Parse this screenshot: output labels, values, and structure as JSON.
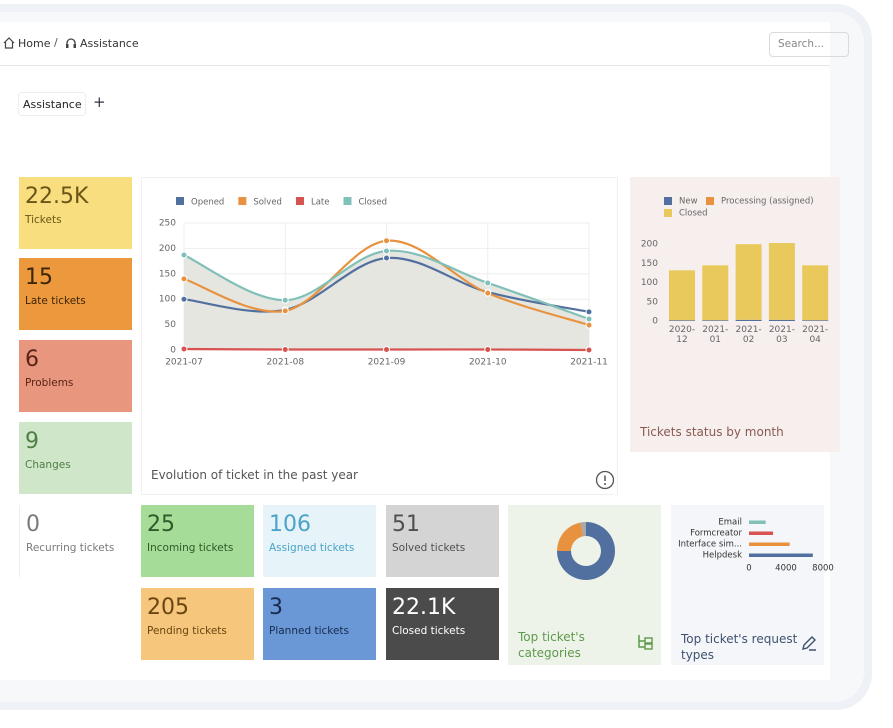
{
  "breadcrumb": [
    "Home",
    "Assistance"
  ],
  "search_placeholder": "Search...",
  "tab": "Assistance",
  "tiles": [
    {
      "value": "22.5K",
      "label": "Tickets",
      "color": "#f8de7e",
      "text_color": "#6a5518"
    },
    {
      "value": "15",
      "label": "Late tickets",
      "color": "#ec983c",
      "text_color": "#3b2608"
    },
    {
      "value": "6",
      "label": "Problems",
      "color": "#e8977e",
      "text_color": "#5a2418"
    },
    {
      "value": "9",
      "label": "Changes",
      "color": "#cfe6c8",
      "text_color": "#4f7f45"
    },
    {
      "value": "0",
      "label": "Recurring tickets",
      "color": "#ffffff",
      "text_color": "#7a7a7a"
    },
    {
      "value": "25",
      "label": "Incoming tickets",
      "color": "#a5dc98",
      "text_color": "#2d5a28"
    },
    {
      "value": "106",
      "label": "Assigned tickets",
      "color": "#e6f3f8",
      "text_color": "#4aa3c9"
    },
    {
      "value": "51",
      "label": "Solved tickets",
      "color": "#d4d4d4",
      "text_color": "#505050"
    },
    {
      "value": "205",
      "label": "Pending tickets",
      "color": "#f6c67c",
      "text_color": "#6a4510"
    },
    {
      "value": "3",
      "label": "Planned tickets",
      "color": "#6a98d6",
      "text_color": "#182a4e"
    },
    {
      "value": "22.1K",
      "label": "Closed tickets",
      "color": "#4b4b4b",
      "text_color": "#ffffff"
    }
  ],
  "chart_data": [
    {
      "type": "line",
      "title": "Evolution of ticket in the past year",
      "categories": [
        "2021-07",
        "2021-08",
        "2021-09",
        "2021-10",
        "2021-11"
      ],
      "series": [
        {
          "name": "Opened",
          "color": "#52709f",
          "values": [
            100,
            79,
            181,
            114,
            75
          ]
        },
        {
          "name": "Solved",
          "color": "#e8923f",
          "values": [
            140,
            77,
            215,
            112,
            49
          ]
        },
        {
          "name": "Late",
          "color": "#d65350",
          "values": [
            2,
            1,
            1,
            1,
            0
          ]
        },
        {
          "name": "Closed",
          "color": "#80c0b8",
          "values": [
            187,
            98,
            195,
            132,
            61
          ]
        }
      ],
      "ylim": [
        0,
        250
      ],
      "yticks": [
        0,
        50,
        100,
        150,
        200,
        250
      ],
      "grid": true
    },
    {
      "type": "bar",
      "title": "Tickets status by month",
      "stacked": true,
      "categories": [
        "2020-12",
        "2021-01",
        "2021-02",
        "2021-03",
        "2021-04"
      ],
      "series": [
        {
          "name": "New",
          "color": "#52709f",
          "values": [
            2,
            2,
            3,
            3,
            2
          ]
        },
        {
          "name": "Processing (assigned)",
          "color": "#e8923f",
          "values": [
            0,
            0,
            0,
            0,
            0
          ]
        },
        {
          "name": "Closed",
          "color": "#e9c95c",
          "values": [
            130,
            143,
            197,
            200,
            143
          ]
        }
      ],
      "ylim": [
        0,
        250
      ],
      "yticks": [
        0,
        50,
        100,
        150,
        200
      ]
    },
    {
      "type": "pie",
      "title": "Top ticket's categories",
      "donut": true,
      "values": [
        75,
        22,
        3
      ],
      "colors": [
        "#52709f",
        "#e8923f",
        "#a9a9a9"
      ]
    },
    {
      "type": "hbar",
      "title": "Top ticket's request types",
      "categories": [
        "Email",
        "Formcreator",
        "Interface sim...",
        "Helpdesk"
      ],
      "values": [
        1800,
        2600,
        4400,
        6900
      ],
      "colors": [
        "#80c0b8",
        "#d65350",
        "#e8923f",
        "#52709f"
      ],
      "xlim": [
        0,
        8000
      ],
      "xticks": [
        0,
        4000,
        8000
      ]
    }
  ]
}
